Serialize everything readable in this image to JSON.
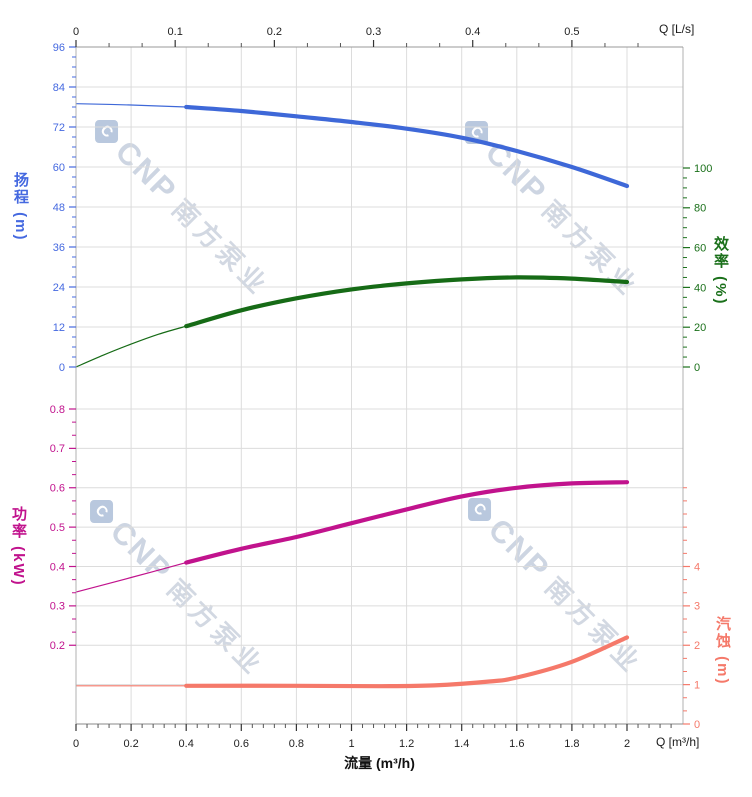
{
  "chart_data": {
    "type": "line",
    "title": "",
    "watermark": {
      "logo": "cnp-diamond",
      "text_latin": "CNP",
      "text_cjk": "南方泵业"
    },
    "axes": {
      "flow_bottom": {
        "title": "流量 (m³/h)",
        "corner_label": "Q [m³/h]",
        "unit": "m³/h",
        "majors": [
          0,
          0.2,
          0.4,
          0.6,
          0.8,
          1,
          1.2,
          1.4,
          1.6,
          1.8,
          2
        ],
        "minor_step": 0.04,
        "range": [
          0,
          2.16
        ],
        "color": "#222222"
      },
      "flow_top": {
        "title": "",
        "corner_label": "Q [L/s]",
        "unit": "L/s",
        "majors": [
          0,
          0.1,
          0.2,
          0.3,
          0.4,
          0.5
        ],
        "minor_step": 0.033333,
        "range": [
          0,
          0.57
        ],
        "to_m3h": 3.6,
        "color": "#222222"
      },
      "head_left": {
        "title": "扬程 (m)",
        "unit": "m",
        "majors": [
          0,
          12,
          24,
          36,
          48,
          60,
          72,
          84,
          96
        ],
        "minor_step": 3,
        "range": [
          0,
          96
        ],
        "color": "#4569e0"
      },
      "efficiency_right": {
        "title": "效率 (%)",
        "unit": "%",
        "majors": [
          0,
          20,
          40,
          60,
          80,
          100
        ],
        "minor_step": 5,
        "range": [
          0,
          100
        ],
        "color": "#1a701a"
      },
      "power_left": {
        "title": "功率 (kW)",
        "unit": "kW",
        "majors": [
          0.2,
          0.3,
          0.4,
          0.5,
          0.6,
          0.7,
          0.8
        ],
        "minor_step": 0.033333,
        "range": [
          0.2,
          0.8
        ],
        "color": "#c1138d"
      },
      "npsh_right": {
        "title": "汽蚀 (m)",
        "unit": "m",
        "majors": [
          0,
          1,
          2,
          3,
          4
        ],
        "minor_step": 0.333333,
        "range": [
          0,
          6
        ],
        "color": "#f5796a"
      }
    },
    "series": [
      {
        "name": "head",
        "axis": "head_left",
        "color": "#3e68d8",
        "thin_until_q": 0.4,
        "points": [
          [
            0,
            79
          ],
          [
            0.2,
            78.6
          ],
          [
            0.4,
            78
          ],
          [
            0.6,
            76.8
          ],
          [
            0.8,
            75.2
          ],
          [
            1.0,
            73.5
          ],
          [
            1.2,
            71.5
          ],
          [
            1.4,
            68.8
          ],
          [
            1.6,
            64.8
          ],
          [
            1.8,
            60.0
          ],
          [
            2.0,
            54.3
          ]
        ]
      },
      {
        "name": "efficiency",
        "axis": "efficiency_right",
        "color": "#166b16",
        "thin_until_q": 0.4,
        "points": [
          [
            0,
            0
          ],
          [
            0.1,
            6
          ],
          [
            0.2,
            11.5
          ],
          [
            0.3,
            16.5
          ],
          [
            0.4,
            20.5
          ],
          [
            0.6,
            28.5
          ],
          [
            0.8,
            34.5
          ],
          [
            1.0,
            39
          ],
          [
            1.2,
            42
          ],
          [
            1.4,
            44
          ],
          [
            1.6,
            45
          ],
          [
            1.8,
            44.4
          ],
          [
            2.0,
            42.7
          ]
        ]
      },
      {
        "name": "power",
        "axis": "power_left",
        "color": "#c1138d",
        "thin_until_q": 0.4,
        "points": [
          [
            0,
            0.335
          ],
          [
            0.2,
            0.372
          ],
          [
            0.4,
            0.41
          ],
          [
            0.6,
            0.445
          ],
          [
            0.8,
            0.475
          ],
          [
            1.0,
            0.51
          ],
          [
            1.2,
            0.545
          ],
          [
            1.4,
            0.578
          ],
          [
            1.6,
            0.6
          ],
          [
            1.8,
            0.611
          ],
          [
            2.0,
            0.614
          ]
        ]
      },
      {
        "name": "npsh",
        "axis": "npsh_right",
        "color": "#f5796a",
        "thin_until_q": 0.4,
        "points": [
          [
            0,
            0.97
          ],
          [
            0.4,
            0.97
          ],
          [
            0.8,
            0.97
          ],
          [
            1.1,
            0.96
          ],
          [
            1.3,
            0.98
          ],
          [
            1.5,
            1.08
          ],
          [
            1.6,
            1.18
          ],
          [
            1.8,
            1.58
          ],
          [
            2.0,
            2.2
          ]
        ]
      }
    ],
    "grid": {
      "on": true,
      "color": "#dcdcdc"
    }
  }
}
